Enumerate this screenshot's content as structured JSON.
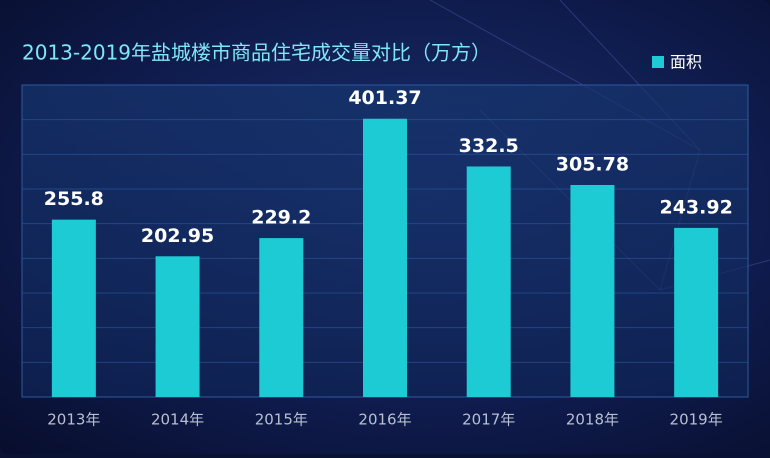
{
  "chart_data": {
    "type": "bar",
    "title": "2013-2019年盐城楼市商品住宅成交量对比（万方）",
    "categories": [
      "2013年",
      "2014年",
      "2015年",
      "2016年",
      "2017年",
      "2018年",
      "2019年"
    ],
    "series": [
      {
        "name": "面积",
        "color": "#1ccbd3",
        "values": [
          255.8,
          202.95,
          229.2,
          401.37,
          332.5,
          305.78,
          243.92
        ]
      }
    ],
    "ylim": [
      0,
      450
    ],
    "yticks": [
      0,
      50,
      100,
      150,
      200,
      250,
      300,
      350,
      400,
      450
    ],
    "grid": true,
    "legend": "top-right"
  }
}
